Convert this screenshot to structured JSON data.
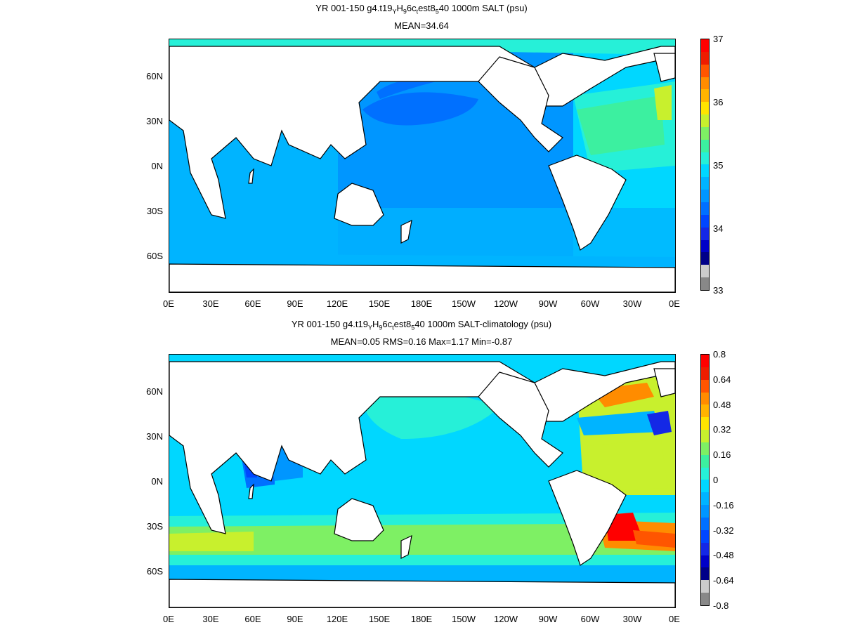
{
  "panels": [
    {
      "title": "YR 001-150 g4.t19_YH_96c_test8_540 1000m SALT (psu)",
      "title_parts": {
        "a": "YR 001-150 g4.t19",
        "s1": "Y",
        "b": "H",
        "s2": "9",
        "c": "6c",
        "s3": "t",
        "d": "est8",
        "s4": "5",
        "e": "40 1000m SALT (psu)"
      },
      "stats": "MEAN=34.64",
      "colorbar_labels": [
        "37",
        "36",
        "35",
        "34",
        "33"
      ],
      "colorbar_colors": [
        "#ff0000",
        "#ee1c00",
        "#ff5500",
        "#ff8c00",
        "#ffb400",
        "#ffe400",
        "#c8f02d",
        "#7ef064",
        "#3cf0a0",
        "#26f0d8",
        "#00d7ff",
        "#00b4ff",
        "#0096ff",
        "#0070ff",
        "#0046ff",
        "#1428e6",
        "#0000c8",
        "#000088",
        "#cccccc",
        "#888888"
      ],
      "ocean_base": "#0096ff"
    },
    {
      "title": "YR 001-150 g4.t19_YH_96c_test8_540 1000m SALT-climatology (psu)",
      "title_parts": {
        "a": "YR 001-150 g4.t19",
        "s1": "Y",
        "b": "H",
        "s2": "9",
        "c": "6c",
        "s3": "t",
        "d": "est8",
        "s4": "5",
        "e": "40 1000m SALT-climatology (psu)"
      },
      "stats": "MEAN=0.05   RMS=0.16   Max=1.17   Min=-0.87",
      "colorbar_labels": [
        "0.8",
        "0.64",
        "0.48",
        "0.32",
        "0.16",
        "0",
        "-0.16",
        "-0.32",
        "-0.48",
        "-0.64",
        "-0.8"
      ],
      "colorbar_colors": [
        "#ff0000",
        "#ee1c00",
        "#ff5500",
        "#ff8c00",
        "#ffb400",
        "#ffe400",
        "#c8f02d",
        "#7ef064",
        "#3cf0a0",
        "#26f0d8",
        "#00d7ff",
        "#00b4ff",
        "#0096ff",
        "#0070ff",
        "#0046ff",
        "#1428e6",
        "#0000c8",
        "#000088",
        "#cccccc",
        "#888888"
      ],
      "ocean_base": "#00d7ff"
    }
  ],
  "lon_labels": [
    "0E",
    "30E",
    "60E",
    "90E",
    "120E",
    "150E",
    "180E",
    "150W",
    "120W",
    "90W",
    "60W",
    "30W",
    "0E"
  ],
  "lat_labels": [
    "60N",
    "30N",
    "0N",
    "30S",
    "60S"
  ]
}
